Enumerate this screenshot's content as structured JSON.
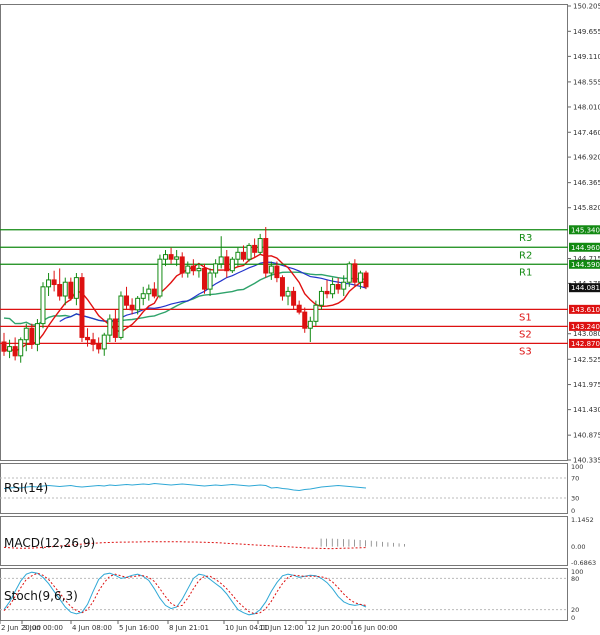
{
  "chart_data": {
    "type": "candlestick",
    "y_ticks": [
      "150.205",
      "149.655",
      "149.110",
      "148.555",
      "148.010",
      "147.460",
      "146.920",
      "146.365",
      "145.820",
      "144.715",
      "144.175",
      "143.080",
      "142.525",
      "141.975",
      "141.430",
      "140.875",
      "140.335"
    ],
    "y_range": [
      140.335,
      150.205
    ],
    "x_ticks": [
      "2 Jun 20:00",
      "3 Jun 00:00",
      "4 Jun 08:00",
      "5 Jun 16:00",
      "8 Jun 21:01",
      "10 Jun 04:00",
      "11 Jun 12:00",
      "12 Jun 20:00",
      "16 Jun 00:00"
    ],
    "current_price": "144.081",
    "levels": [
      {
        "name": "R3",
        "value": 145.34,
        "label": "145.340",
        "color": "#138a13"
      },
      {
        "name": "R2",
        "value": 144.96,
        "label": "144.960",
        "color": "#138a13"
      },
      {
        "name": "R1",
        "value": 144.59,
        "label": "144.590",
        "color": "#138a13"
      },
      {
        "name": "S1",
        "value": 143.61,
        "label": "143.610",
        "color": "#dd1111"
      },
      {
        "name": "S2",
        "value": 143.24,
        "label": "143.240",
        "color": "#dd1111"
      },
      {
        "name": "S3",
        "value": 142.87,
        "label": "142.870",
        "color": "#dd1111"
      }
    ],
    "candles": [
      {
        "o": 142.9,
        "h": 143.1,
        "l": 142.6,
        "c": 142.7
      },
      {
        "o": 142.7,
        "h": 142.95,
        "l": 142.55,
        "c": 142.8
      },
      {
        "o": 142.8,
        "h": 143.0,
        "l": 142.5,
        "c": 142.6
      },
      {
        "o": 142.6,
        "h": 143.0,
        "l": 142.45,
        "c": 142.95
      },
      {
        "o": 142.95,
        "h": 143.3,
        "l": 142.7,
        "c": 143.2
      },
      {
        "o": 143.2,
        "h": 143.3,
        "l": 142.75,
        "c": 142.85
      },
      {
        "o": 142.85,
        "h": 143.4,
        "l": 142.7,
        "c": 143.3
      },
      {
        "o": 143.3,
        "h": 144.2,
        "l": 143.2,
        "c": 144.1
      },
      {
        "o": 144.1,
        "h": 144.4,
        "l": 143.9,
        "c": 144.25
      },
      {
        "o": 144.25,
        "h": 144.45,
        "l": 144.0,
        "c": 144.15
      },
      {
        "o": 144.15,
        "h": 144.5,
        "l": 143.8,
        "c": 143.9
      },
      {
        "o": 143.9,
        "h": 144.3,
        "l": 143.7,
        "c": 144.2
      },
      {
        "o": 144.2,
        "h": 144.3,
        "l": 143.8,
        "c": 143.85
      },
      {
        "o": 143.85,
        "h": 144.4,
        "l": 143.7,
        "c": 144.3
      },
      {
        "o": 144.3,
        "h": 144.4,
        "l": 142.9,
        "c": 143.0
      },
      {
        "o": 143.0,
        "h": 143.2,
        "l": 142.8,
        "c": 142.95
      },
      {
        "o": 142.95,
        "h": 143.1,
        "l": 142.7,
        "c": 142.85
      },
      {
        "o": 142.85,
        "h": 143.0,
        "l": 142.65,
        "c": 142.75
      },
      {
        "o": 142.75,
        "h": 143.1,
        "l": 142.6,
        "c": 143.05
      },
      {
        "o": 143.05,
        "h": 143.5,
        "l": 142.9,
        "c": 143.4
      },
      {
        "o": 143.4,
        "h": 143.6,
        "l": 142.9,
        "c": 143.0
      },
      {
        "o": 143.0,
        "h": 144.0,
        "l": 142.95,
        "c": 143.9
      },
      {
        "o": 143.9,
        "h": 144.1,
        "l": 143.6,
        "c": 143.7
      },
      {
        "o": 143.7,
        "h": 143.85,
        "l": 143.5,
        "c": 143.6
      },
      {
        "o": 143.6,
        "h": 143.9,
        "l": 143.5,
        "c": 143.85
      },
      {
        "o": 143.85,
        "h": 144.1,
        "l": 143.7,
        "c": 143.95
      },
      {
        "o": 143.95,
        "h": 144.15,
        "l": 143.8,
        "c": 144.05
      },
      {
        "o": 144.05,
        "h": 144.2,
        "l": 143.85,
        "c": 143.9
      },
      {
        "o": 143.9,
        "h": 144.8,
        "l": 143.85,
        "c": 144.7
      },
      {
        "o": 144.7,
        "h": 144.9,
        "l": 144.55,
        "c": 144.8
      },
      {
        "o": 144.8,
        "h": 144.95,
        "l": 144.6,
        "c": 144.7
      },
      {
        "o": 144.7,
        "h": 144.9,
        "l": 144.55,
        "c": 144.75
      },
      {
        "o": 144.75,
        "h": 144.85,
        "l": 144.3,
        "c": 144.4
      },
      {
        "o": 144.4,
        "h": 144.65,
        "l": 144.3,
        "c": 144.55
      },
      {
        "o": 144.55,
        "h": 144.7,
        "l": 144.35,
        "c": 144.45
      },
      {
        "o": 144.45,
        "h": 144.6,
        "l": 144.3,
        "c": 144.5
      },
      {
        "o": 144.5,
        "h": 144.6,
        "l": 143.95,
        "c": 144.05
      },
      {
        "o": 144.05,
        "h": 144.5,
        "l": 143.9,
        "c": 144.4
      },
      {
        "o": 144.4,
        "h": 144.7,
        "l": 144.3,
        "c": 144.6
      },
      {
        "o": 144.6,
        "h": 145.2,
        "l": 144.5,
        "c": 144.75
      },
      {
        "o": 144.75,
        "h": 144.9,
        "l": 144.3,
        "c": 144.45
      },
      {
        "o": 144.45,
        "h": 144.75,
        "l": 144.4,
        "c": 144.7
      },
      {
        "o": 144.7,
        "h": 144.95,
        "l": 144.55,
        "c": 144.85
      },
      {
        "o": 144.85,
        "h": 145.0,
        "l": 144.65,
        "c": 144.7
      },
      {
        "o": 144.7,
        "h": 145.05,
        "l": 144.65,
        "c": 145.0
      },
      {
        "o": 145.0,
        "h": 145.15,
        "l": 144.75,
        "c": 144.85
      },
      {
        "o": 144.85,
        "h": 145.25,
        "l": 144.8,
        "c": 145.15
      },
      {
        "o": 145.15,
        "h": 145.4,
        "l": 144.3,
        "c": 144.4
      },
      {
        "o": 144.4,
        "h": 144.65,
        "l": 144.25,
        "c": 144.55
      },
      {
        "o": 144.55,
        "h": 144.65,
        "l": 144.2,
        "c": 144.3
      },
      {
        "o": 144.3,
        "h": 144.35,
        "l": 143.8,
        "c": 143.9
      },
      {
        "o": 143.9,
        "h": 144.1,
        "l": 143.7,
        "c": 144.0
      },
      {
        "o": 144.0,
        "h": 144.1,
        "l": 143.6,
        "c": 143.7
      },
      {
        "o": 143.7,
        "h": 143.8,
        "l": 143.5,
        "c": 143.55
      },
      {
        "o": 143.55,
        "h": 143.65,
        "l": 143.1,
        "c": 143.2
      },
      {
        "o": 143.2,
        "h": 143.45,
        "l": 142.9,
        "c": 143.35
      },
      {
        "o": 143.35,
        "h": 143.8,
        "l": 143.25,
        "c": 143.7
      },
      {
        "o": 143.7,
        "h": 144.1,
        "l": 143.6,
        "c": 144.0
      },
      {
        "o": 144.0,
        "h": 144.25,
        "l": 143.85,
        "c": 143.95
      },
      {
        "o": 143.95,
        "h": 144.3,
        "l": 143.85,
        "c": 144.15
      },
      {
        "o": 144.15,
        "h": 144.3,
        "l": 143.95,
        "c": 144.05
      },
      {
        "o": 144.05,
        "h": 144.35,
        "l": 143.9,
        "c": 144.2
      },
      {
        "o": 144.2,
        "h": 144.65,
        "l": 144.1,
        "c": 144.6
      },
      {
        "o": 144.6,
        "h": 144.7,
        "l": 144.1,
        "c": 144.2
      },
      {
        "o": 144.2,
        "h": 144.45,
        "l": 144.05,
        "c": 144.4
      },
      {
        "o": 144.4,
        "h": 144.45,
        "l": 144.05,
        "c": 144.1
      }
    ],
    "indicators": {
      "rsi": {
        "label": "RSI(14)",
        "scale": [
          "100",
          "70",
          "30",
          "0"
        ],
        "values": [
          49,
          50,
          51,
          50,
          52,
          53,
          52,
          54,
          55,
          54,
          53,
          54,
          55,
          53,
          52,
          53,
          54,
          55,
          54,
          56,
          55,
          56,
          57,
          56,
          57,
          58,
          57,
          59,
          58,
          57,
          56,
          57,
          58,
          57,
          56,
          55,
          54,
          55,
          56,
          55,
          56,
          57,
          56,
          55,
          54,
          55,
          56,
          55,
          50,
          51,
          49,
          48,
          46,
          45,
          47,
          48,
          50,
          52,
          53,
          54,
          55,
          54,
          53,
          52,
          51,
          50
        ]
      },
      "macd": {
        "label": "MACD(12,26,9)",
        "scale": [
          "1.1452",
          "0.00",
          "-0.6863"
        ],
        "hist": [
          -0.1,
          -0.12,
          -0.14,
          -0.15,
          -0.14,
          -0.12,
          -0.1,
          -0.05,
          0.0,
          0.05,
          0.08,
          0.1,
          0.12,
          0.15,
          0.18,
          0.2,
          0.22,
          0.24,
          0.25,
          0.26,
          0.27,
          0.28,
          0.28,
          0.29,
          0.3,
          0.3,
          0.3,
          0.3,
          0.3,
          0.3,
          0.3,
          0.3,
          0.3,
          0.29,
          0.28,
          0.27,
          0.26,
          0.25,
          0.24,
          0.22,
          0.2,
          0.18,
          0.16,
          0.14,
          0.12,
          0.1,
          0.08,
          0.06,
          0.04,
          0.02,
          0.0,
          -0.02,
          -0.04,
          -0.06,
          -0.08,
          -0.1,
          -0.12,
          -0.13,
          -0.14,
          -0.13,
          -0.12,
          -0.1,
          -0.08,
          -0.06,
          -0.05,
          -0.04
        ],
        "signal": [
          -0.05,
          -0.07,
          -0.09,
          -0.1,
          -0.1,
          -0.09,
          -0.07,
          -0.05,
          -0.02,
          0.01,
          0.04,
          0.07,
          0.1,
          0.13,
          0.16,
          0.19,
          0.21,
          0.23,
          0.25,
          0.26,
          0.27,
          0.28,
          0.28,
          0.29,
          0.29,
          0.3,
          0.3,
          0.3,
          0.3,
          0.3,
          0.3,
          0.3,
          0.3,
          0.29,
          0.29,
          0.28,
          0.27,
          0.26,
          0.25,
          0.23,
          0.21,
          0.19,
          0.17,
          0.15,
          0.13,
          0.11,
          0.09,
          0.07,
          0.05,
          0.03,
          0.01,
          -0.01,
          -0.03,
          -0.05,
          -0.07,
          -0.09,
          -0.1,
          -0.11,
          -0.12,
          -0.12,
          -0.11,
          -0.1,
          -0.09,
          -0.08,
          -0.07,
          -0.06
        ]
      },
      "stoch": {
        "label": "Stoch(9,6,3)",
        "scale": [
          "100",
          "80",
          "20",
          "0"
        ],
        "k": [
          20,
          35,
          55,
          75,
          88,
          92,
          90,
          82,
          70,
          55,
          40,
          25,
          15,
          12,
          15,
          30,
          55,
          78,
          88,
          90,
          86,
          80,
          82,
          86,
          88,
          84,
          76,
          60,
          42,
          28,
          22,
          25,
          40,
          60,
          80,
          88,
          86,
          78,
          70,
          62,
          50,
          35,
          20,
          14,
          10,
          12,
          20,
          35,
          55,
          72,
          85,
          88,
          86,
          82,
          84,
          86,
          85,
          80,
          72,
          60,
          45,
          35,
          30,
          28,
          30,
          25
        ],
        "d": [
          18,
          28,
          45,
          62,
          78,
          85,
          90,
          86,
          78,
          65,
          52,
          38,
          26,
          18,
          14,
          20,
          35,
          56,
          72,
          84,
          88,
          85,
          82,
          83,
          85,
          85,
          82,
          74,
          60,
          45,
          32,
          26,
          28,
          42,
          60,
          76,
          84,
          84,
          78,
          70,
          60,
          48,
          35,
          25,
          16,
          12,
          14,
          22,
          36,
          54,
          70,
          82,
          86,
          85,
          84,
          84,
          84,
          83,
          80,
          73,
          62,
          50,
          40,
          33,
          30,
          28
        ]
      }
    }
  },
  "ui": {
    "rsi_label": "RSI(14)",
    "macd_label": "MACD(12,26,9)",
    "stoch_label": "Stoch(9,6,3)",
    "colors": {
      "bull": "#138a13",
      "bear": "#dd1111",
      "ma_red": "#e01010",
      "ma_blue": "#2233cc",
      "ma_green": "#2fa36b",
      "osc": "#2fa8d6",
      "grid": "#d8d8d8",
      "price_tag": "#111111"
    }
  }
}
